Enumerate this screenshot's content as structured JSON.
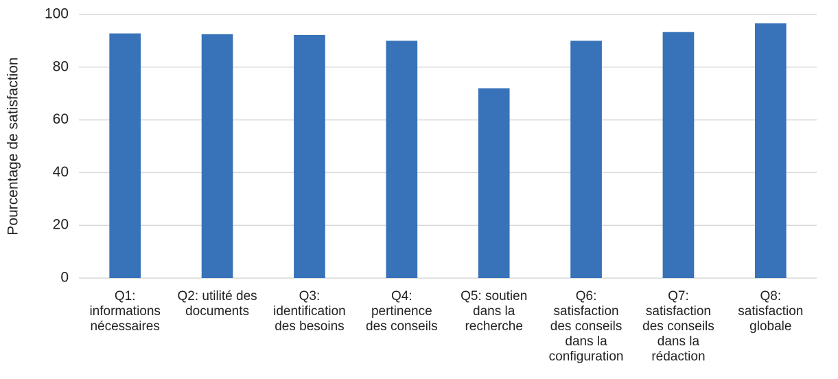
{
  "chart_data": {
    "type": "bar",
    "ylabel": "Pourcentage de satisfaction",
    "categories": [
      "Q1: informations nécessaires",
      "Q2: utilité des documents",
      "Q3: identification des besoins",
      "Q4: pertinence des conseils",
      "Q5: soutien dans la recherche",
      "Q6: satisfaction des conseils dans la configuration",
      "Q7: satisfaction des conseils dans la rédaction",
      "Q8: satisfaction globale"
    ],
    "values": [
      92.8,
      92.5,
      92.2,
      90,
      72,
      90,
      93.3,
      96.6
    ],
    "color": "#3872b8",
    "ylim": [
      0,
      100
    ],
    "yticks": [
      0,
      20,
      40,
      60,
      80,
      100
    ],
    "grid": true
  }
}
